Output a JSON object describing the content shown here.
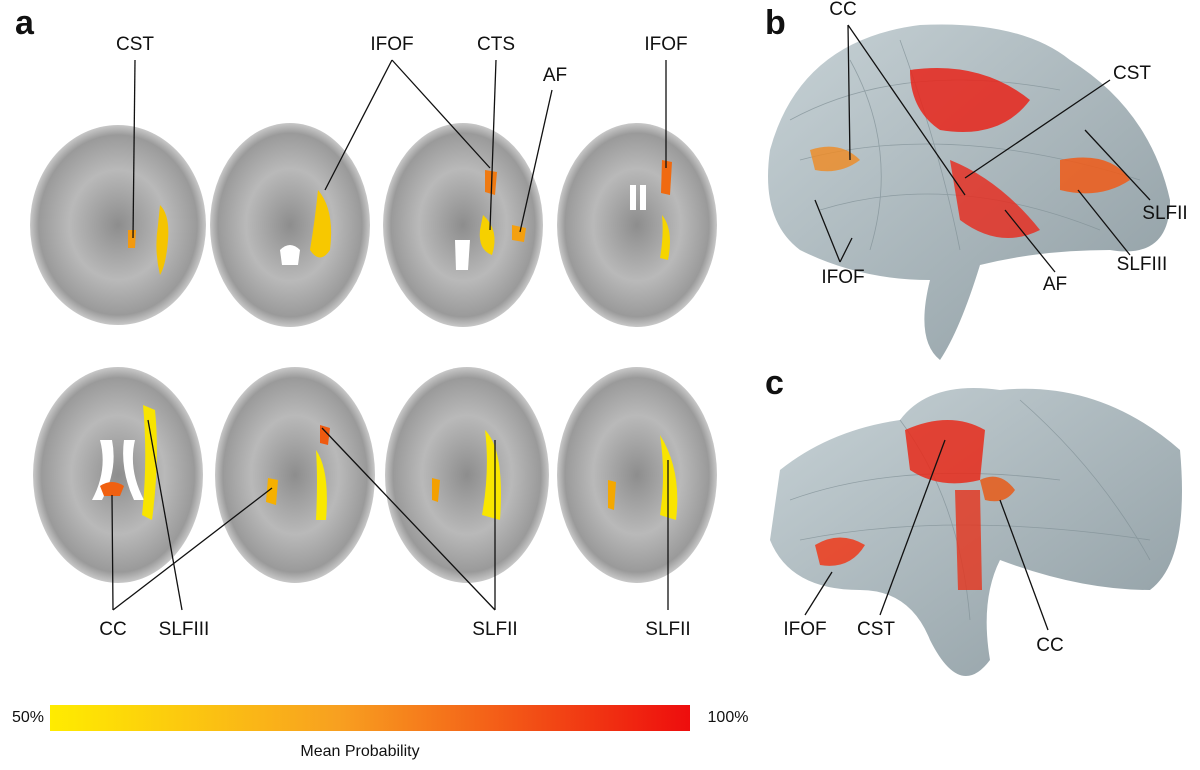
{
  "panels": [
    {
      "letter": "a",
      "labels": [
        "CST",
        "IFOF",
        "CTS",
        "AF",
        "IFOF",
        "CC",
        "SLFIII",
        "SLFII",
        "SLFII"
      ]
    },
    {
      "letter": "b",
      "labels": [
        "CC",
        "CST",
        "SLFII",
        "SLFIII",
        "AF",
        "IFOF"
      ]
    },
    {
      "letter": "c",
      "labels": [
        "IFOF",
        "CST",
        "CC"
      ]
    }
  ],
  "colorbar": {
    "min_label": "50%",
    "max_label": "100%",
    "title": "Mean Probability"
  }
}
